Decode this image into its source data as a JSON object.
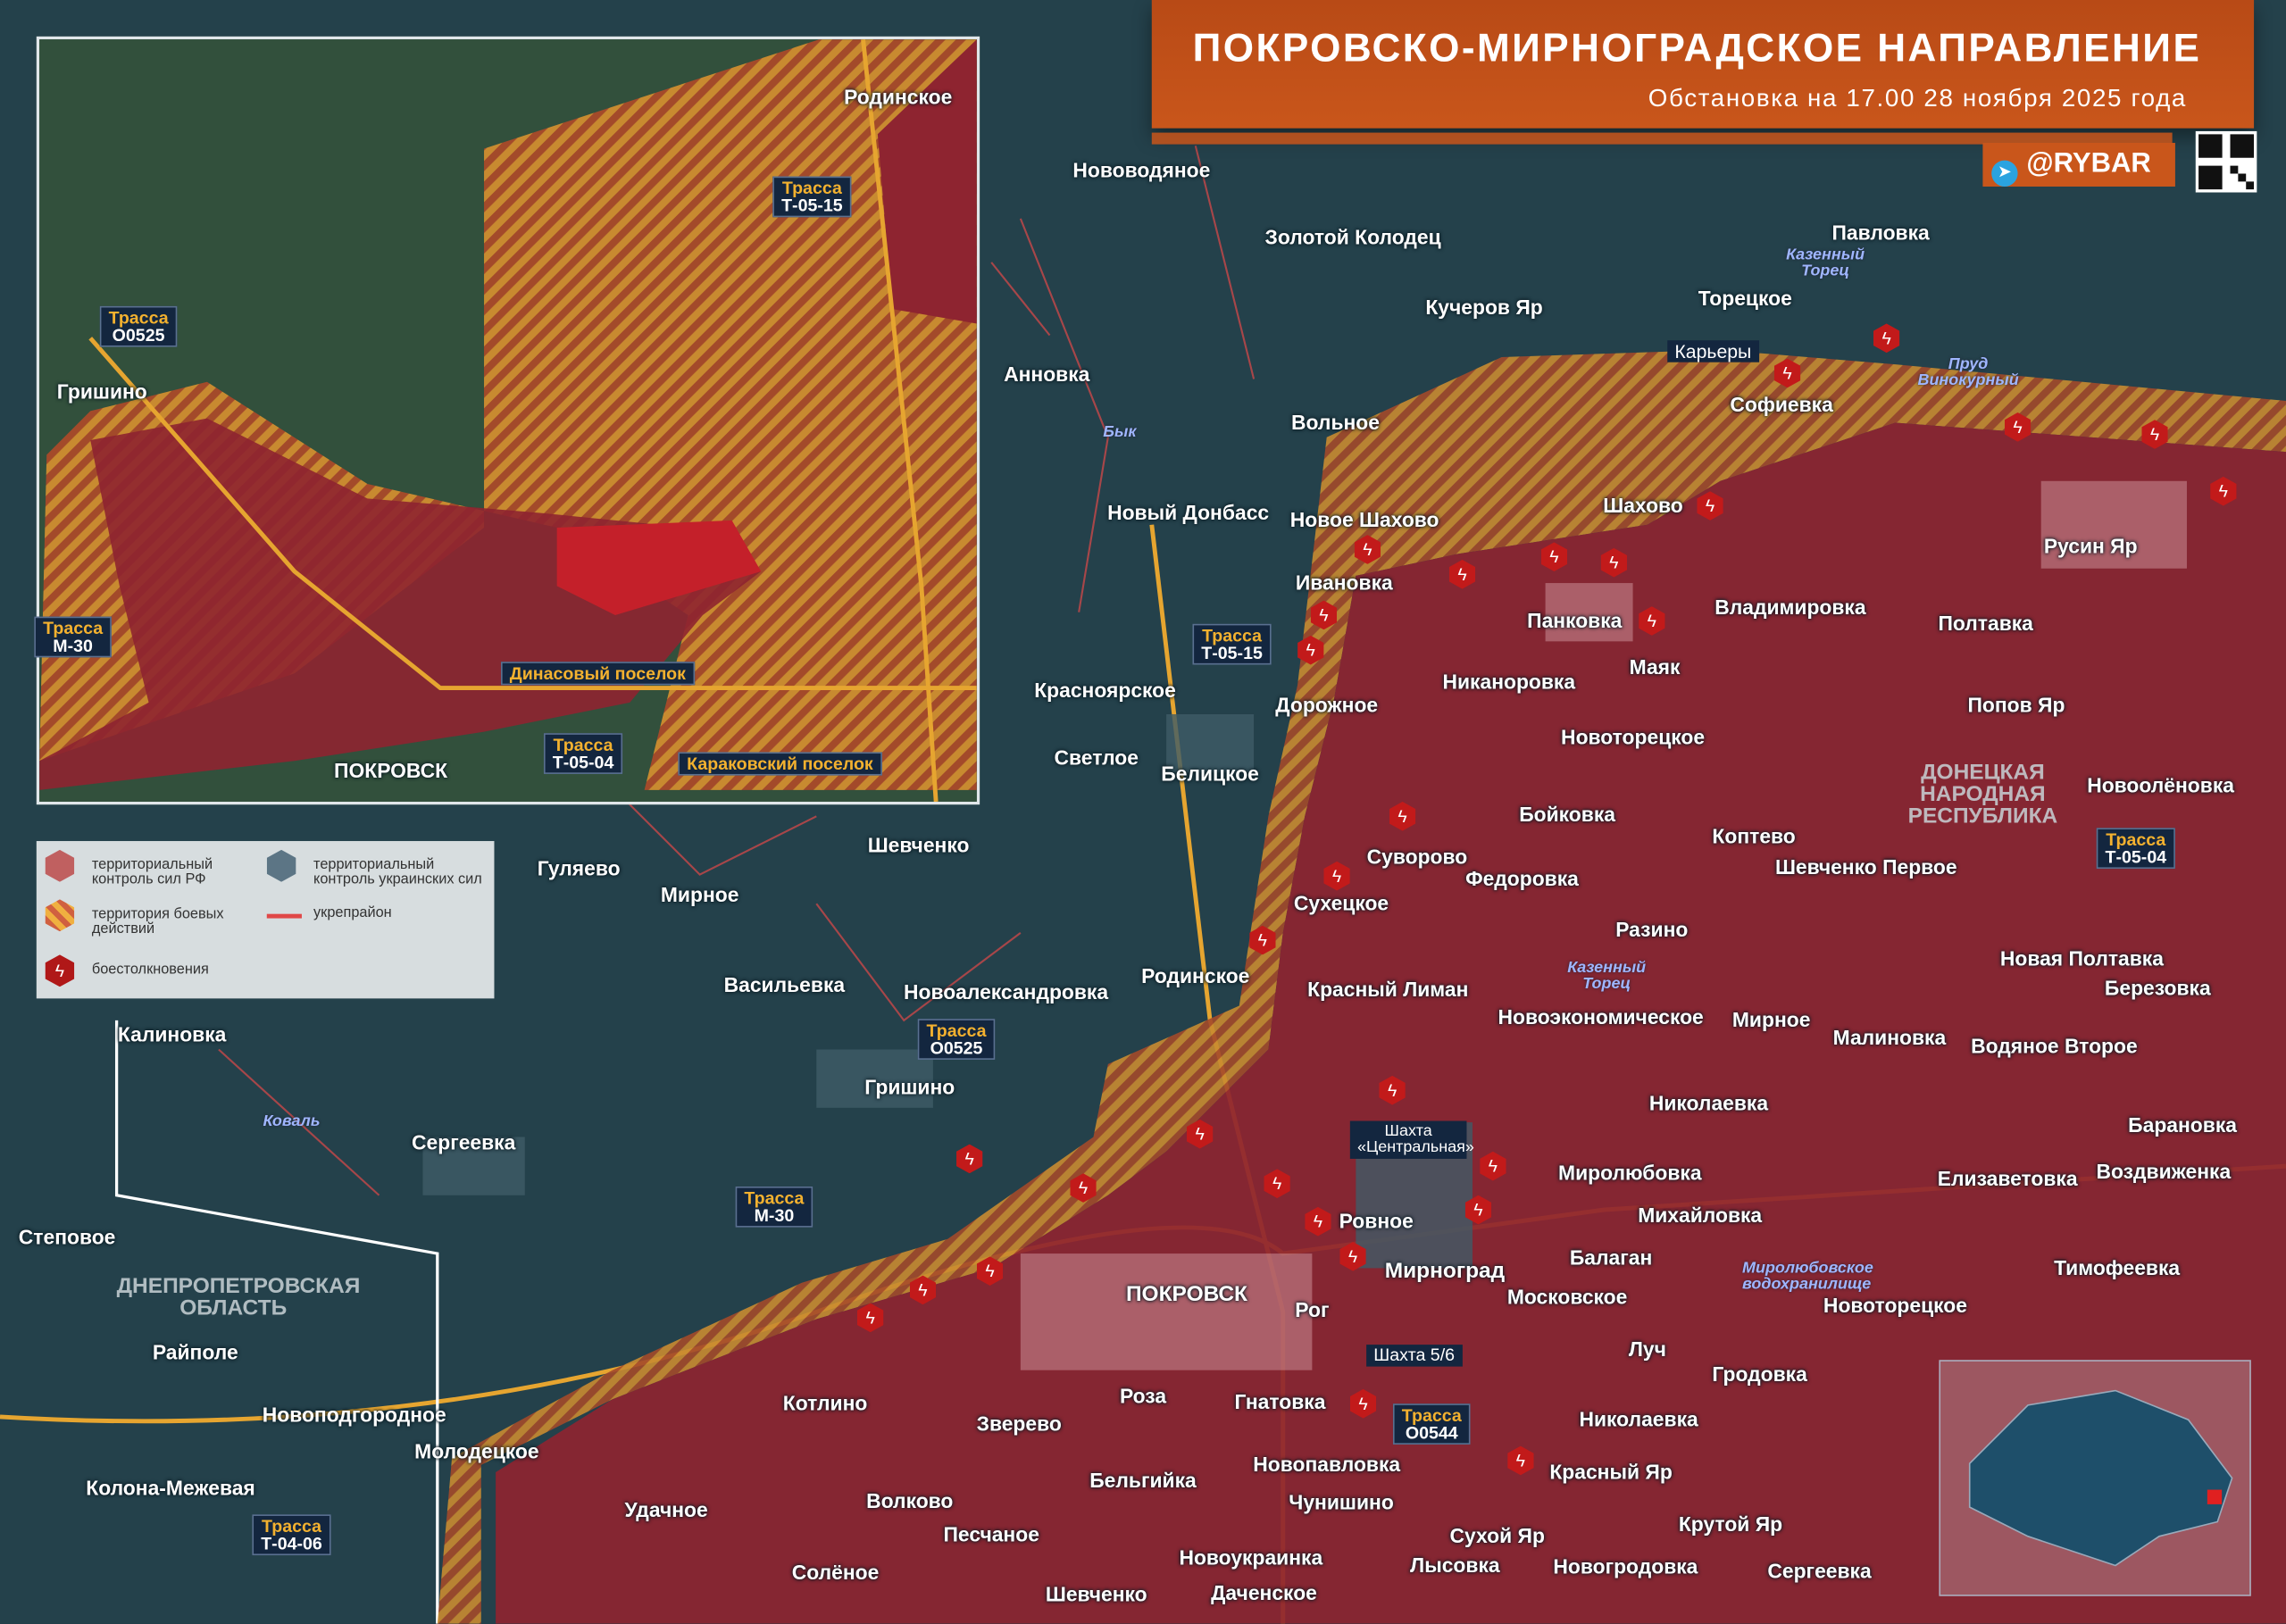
{
  "header": {
    "title": "ПОКРОВСКО-МИРНОГРАДСКОЕ НАПРАВЛЕНИЕ",
    "subtitle": "Обстановка на 17.00 28 ноября 2025 года",
    "handle": "@RYBAR"
  },
  "colors": {
    "russian_control": "#9b2a33",
    "combat_zone": "#e0a030",
    "ukrainian_control": "#2a4a58",
    "fortification": "#e04848",
    "title_bg": "#c9561b",
    "clash": "#c21a1a"
  },
  "legend": {
    "items": [
      {
        "icon": "hexagon-red",
        "label": "территориальный контроль сил РФ"
      },
      {
        "icon": "hexagon-hatched",
        "label": "территория боевых действий"
      },
      {
        "icon": "hexagon-blue",
        "label": "территориальный контроль украинских сил"
      },
      {
        "icon": "red-line",
        "label": "укрепрайон"
      },
      {
        "icon": "clash-hexagon",
        "label": "боестолкновения"
      }
    ]
  },
  "inset": {
    "places": [
      "Родинское",
      "Гришино",
      "ПОКРОВСК"
    ],
    "routes": [
      {
        "a": "Трасса",
        "b": "Т-05-15"
      },
      {
        "a": "Трасса",
        "b": "О0525"
      },
      {
        "a": "Трасса",
        "b": "М-30"
      },
      {
        "a": "Трасса",
        "b": "Т-05-04"
      }
    ],
    "tags": [
      "Динасовый поселок",
      "Караковский поселок"
    ]
  },
  "places": [
    "Нововодяное",
    "Золотой Колодец",
    "Кучеров Яр",
    "Павловка",
    "Торецкое",
    "Софиевка",
    "Анновка",
    "Вольное",
    "Новый Донбасс",
    "Новое Шахово",
    "Шахово",
    "Русин Яр",
    "Ивановка",
    "Панковка",
    "Владимировка",
    "Полтавка",
    "Красноярское",
    "Никаноровка",
    "Маяк",
    "Попов Яр",
    "Дорожное",
    "Светлое",
    "Белицкое",
    "Новоторецкое",
    "Новоолёновка",
    "Бойковка",
    "Шевченко",
    "Суворово",
    "Федоровка",
    "Коптево",
    "Шевченко Первое",
    "Гуляево",
    "Мирное",
    "Сухецкое",
    "Разино",
    "Родинское",
    "Красный Лиман",
    "Новая Полтавка",
    "Березовка",
    "Васильевка",
    "Новоалександровка",
    "Новоэкономическое",
    "Мирное",
    "Малиновка",
    "Водяное Второе",
    "Калиновка",
    "Гришино",
    "Николаевка",
    "Барановка",
    "Сергеевка",
    "Миролюбовка",
    "Елизаветовка",
    "Воздвиженка",
    "Михайловка",
    "Ровное",
    "Степовое",
    "Балаган",
    "Мирноград",
    "Тимофеевка",
    "ПОКРОВСК",
    "Московское",
    "Новоторецкое",
    "Рог",
    "Райполе",
    "Луч",
    "Гродовка",
    "Котлино",
    "Гнатовка",
    "Роза",
    "Зверево",
    "Николаевка",
    "Новоподгородное",
    "Молодецкое",
    "Красный Яр",
    "Новопавловка",
    "Бельгийка",
    "Колона-Межевая",
    "Волково",
    "Удачное",
    "Чунишино",
    "Крутой Яр",
    "Песчаное",
    "Сухой Яр",
    "Новоукраинка",
    "Лысовка",
    "Новогродовка",
    "Сергеевка",
    "Солёное",
    "Шевченко",
    "Даченское"
  ],
  "water": [
    "Казенный Торец",
    "Пруд Винокурный",
    "Бык",
    "Казенный Торец",
    "Коваль",
    "Миролюбовское водохранилище"
  ],
  "regions": [
    "ДОНЕЦКАЯ НАРОДНАЯ РЕСПУБЛИКА",
    "ДНЕПРОПЕТРОВСКАЯ ОБЛАСТЬ"
  ],
  "routes": [
    {
      "a": "Трасса",
      "b": "Т-05-15"
    },
    {
      "a": "Трасса",
      "b": "Т-05-04"
    },
    {
      "a": "Трасса",
      "b": "О0525"
    },
    {
      "a": "Трасса",
      "b": "М-30"
    },
    {
      "a": "Трасса",
      "b": "О0544"
    },
    {
      "a": "Трасса",
      "b": "Т-04-06"
    }
  ],
  "tags": [
    "Карьеры",
    "Шахта «Центральная»",
    "Шахта 5/6"
  ]
}
